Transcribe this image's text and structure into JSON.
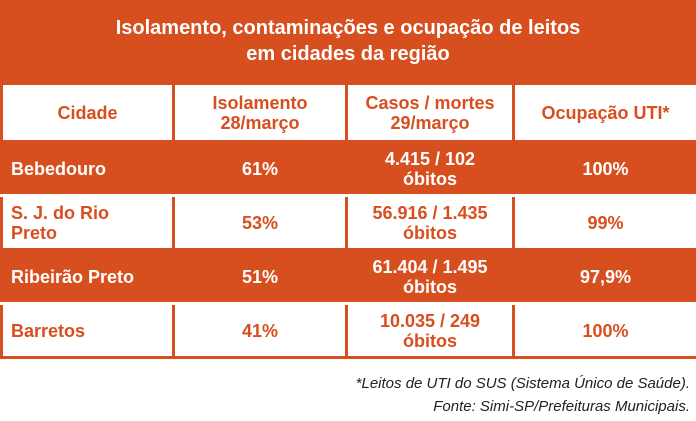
{
  "header": {
    "title": "Isolamento, contaminações e ocupação de leitos\nem cidades da região"
  },
  "table": {
    "columns": [
      "Cidade",
      "Isolamento\n28/março",
      "Casos / mortes\n29/março",
      "Ocupação UTI*"
    ],
    "rows": [
      [
        "Bebedouro",
        "61%",
        "4.415 / 102\nóbitos",
        "100%"
      ],
      [
        "S. J. do Rio\nPreto",
        "53%",
        "56.916 / 1.435\nóbitos",
        "99%"
      ],
      [
        "Ribeirão Preto",
        "51%",
        "61.404 / 1.495\nóbitos",
        "97,9%"
      ],
      [
        "Barretos",
        "41%",
        "10.035 / 249\nóbitos",
        "100%"
      ]
    ]
  },
  "footnotes": [
    "*Leitos de UTI do SUS (Sistema Único de Saúde).",
    "Fonte: Simi-SP/Prefeituras Municipais."
  ]
}
